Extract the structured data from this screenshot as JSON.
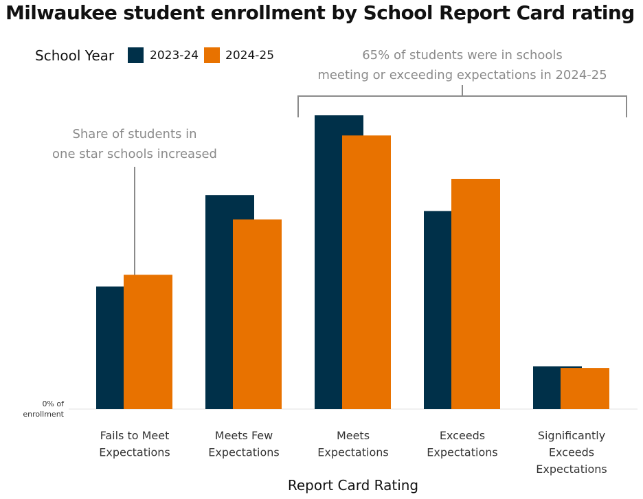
{
  "chart_data": {
    "type": "bar",
    "title": "Milwaukee student enrollment by School Report Card rating",
    "xlabel": "Report Card Rating",
    "ylabel": "",
    "zero_label": [
      "0% of",
      "enrollment"
    ],
    "legend": {
      "title": "School Year",
      "placement": "top-left"
    },
    "categories": [
      [
        "Fails to Meet",
        "Expectations"
      ],
      [
        "Meets Few",
        "Expectations"
      ],
      [
        "Meets",
        "Expectations"
      ],
      [
        "Exceeds",
        "Expectations"
      ],
      [
        "Significantly",
        "Exceeds",
        "Expectations"
      ]
    ],
    "series": [
      {
        "name": "2023-24",
        "color": "#003049",
        "values": [
          14.6,
          25.5,
          35.0,
          23.6,
          5.1
        ]
      },
      {
        "name": "2024-25",
        "color": "#e87200",
        "values": [
          16.0,
          22.6,
          32.6,
          27.4,
          4.9
        ]
      }
    ],
    "ylim": [
      0,
      35.0
    ],
    "grid": false,
    "annotations": [
      {
        "lines": [
          "65% of students were in schools",
          "meeting or exceeding expectations in 2024-25"
        ]
      },
      {
        "lines": [
          "Share of students in",
          "one star schools increased"
        ]
      }
    ]
  }
}
